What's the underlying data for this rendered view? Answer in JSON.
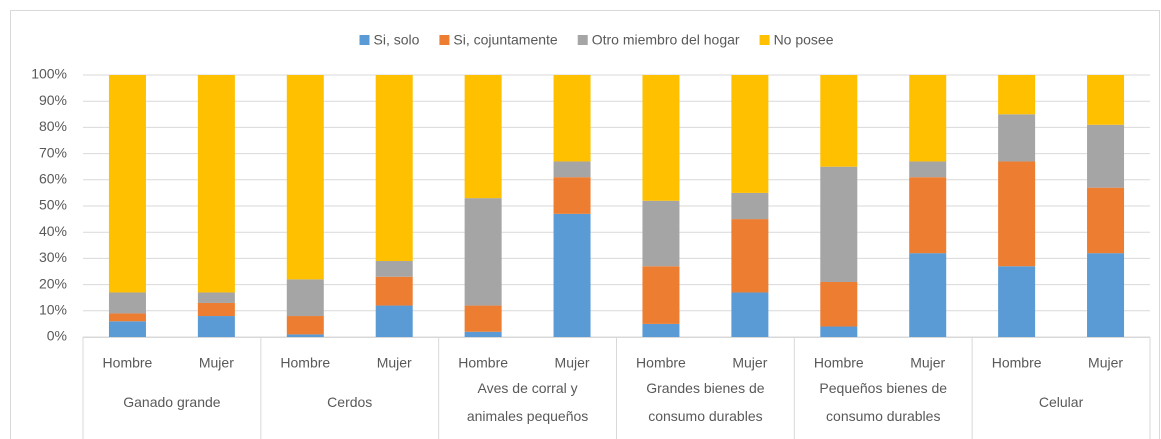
{
  "chart_data": {
    "type": "stacked_bar",
    "groups": [
      "Ganado grande",
      "Cerdos",
      "Aves de corral y animales pequeños",
      "Grandes bienes de consumo durables",
      "Pequeños bienes de consumo durables",
      "Celular"
    ],
    "categories": [
      "Hombre",
      "Mujer",
      "Hombre",
      "Mujer",
      "Hombre",
      "Mujer",
      "Hombre",
      "Mujer",
      "Hombre",
      "Mujer",
      "Hombre",
      "Mujer"
    ],
    "series": [
      {
        "name": "Si, solo",
        "color": "#5b9bd5",
        "values": [
          6,
          8,
          1,
          12,
          2,
          47,
          5,
          17,
          4,
          32,
          27,
          32
        ]
      },
      {
        "name": "Si, cojuntamente",
        "color": "#ed7d31",
        "values": [
          3,
          5,
          7,
          11,
          10,
          14,
          22,
          28,
          17,
          29,
          40,
          25
        ]
      },
      {
        "name": "Otro miembro del hogar",
        "color": "#a5a5a5",
        "values": [
          8,
          4,
          14,
          6,
          41,
          6,
          25,
          10,
          44,
          6,
          18,
          24
        ]
      },
      {
        "name": "No posee",
        "color": "#ffc000",
        "values": [
          83,
          83,
          78,
          71,
          47,
          33,
          48,
          45,
          35,
          33,
          15,
          19
        ]
      }
    ],
    "ylim": [
      0,
      100
    ],
    "yticks": [
      {
        "value": 0,
        "label": "0%"
      },
      {
        "value": 10,
        "label": "10%"
      },
      {
        "value": 20,
        "label": "20%"
      },
      {
        "value": 30,
        "label": "30%"
      },
      {
        "value": 40,
        "label": "40%"
      },
      {
        "value": 50,
        "label": "50%"
      },
      {
        "value": 60,
        "label": "60%"
      },
      {
        "value": 70,
        "label": "70%"
      },
      {
        "value": 80,
        "label": "80%"
      },
      {
        "value": 90,
        "label": "90%"
      },
      {
        "value": 100,
        "label": "100%"
      }
    ],
    "grid": true,
    "legend": "top"
  }
}
